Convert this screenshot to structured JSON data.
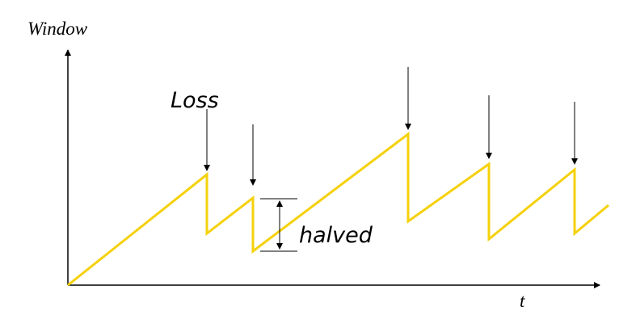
{
  "labels": {
    "y_axis": "Window",
    "x_axis": "t",
    "loss": "Loss",
    "halved": "halved"
  },
  "colors": {
    "sawtooth": "#f5d10b",
    "axes": "#000000",
    "background": "#ffffff"
  }
}
